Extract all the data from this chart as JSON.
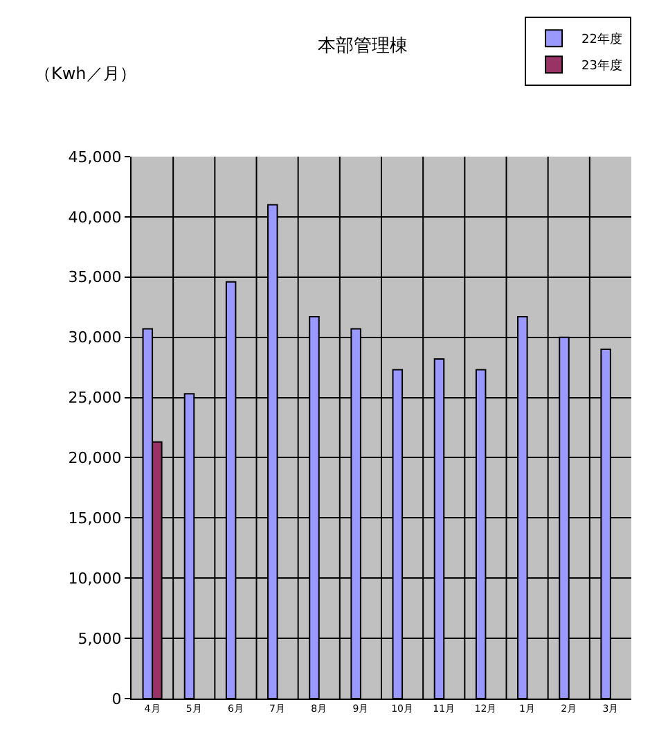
{
  "chart_data": {
    "type": "bar",
    "title": "本部管理棟",
    "ylabel": "（Kwh／月）",
    "categories": [
      "4月",
      "5月",
      "6月",
      "7月",
      "8月",
      "9月",
      "10月",
      "11月",
      "12月",
      "1月",
      "2月",
      "3月"
    ],
    "series": [
      {
        "name": "22年度",
        "color": "#9999ff",
        "values": [
          30700,
          25300,
          34600,
          41000,
          31700,
          30700,
          27300,
          28200,
          27300,
          31700,
          30000,
          29000
        ]
      },
      {
        "name": "23年度",
        "color": "#993366",
        "values": [
          21300,
          null,
          null,
          null,
          null,
          null,
          null,
          null,
          null,
          null,
          null,
          null
        ]
      }
    ],
    "ylim": [
      0,
      45000
    ],
    "yticks": [
      0,
      {
        "value": 5000,
        "label": "5,000"
      },
      {
        "value": 10000,
        "label": "10,000"
      },
      {
        "value": 15000,
        "label": "15,000"
      },
      {
        "value": 20000,
        "label": "20,000"
      },
      {
        "value": 25000,
        "label": "25,000"
      },
      {
        "value": 30000,
        "label": "30,000"
      },
      {
        "value": 35000,
        "label": "35,000"
      },
      {
        "value": 40000,
        "label": "40,000"
      },
      {
        "value": 45000,
        "label": "45,000"
      }
    ],
    "grid": true,
    "legend": "top right"
  }
}
